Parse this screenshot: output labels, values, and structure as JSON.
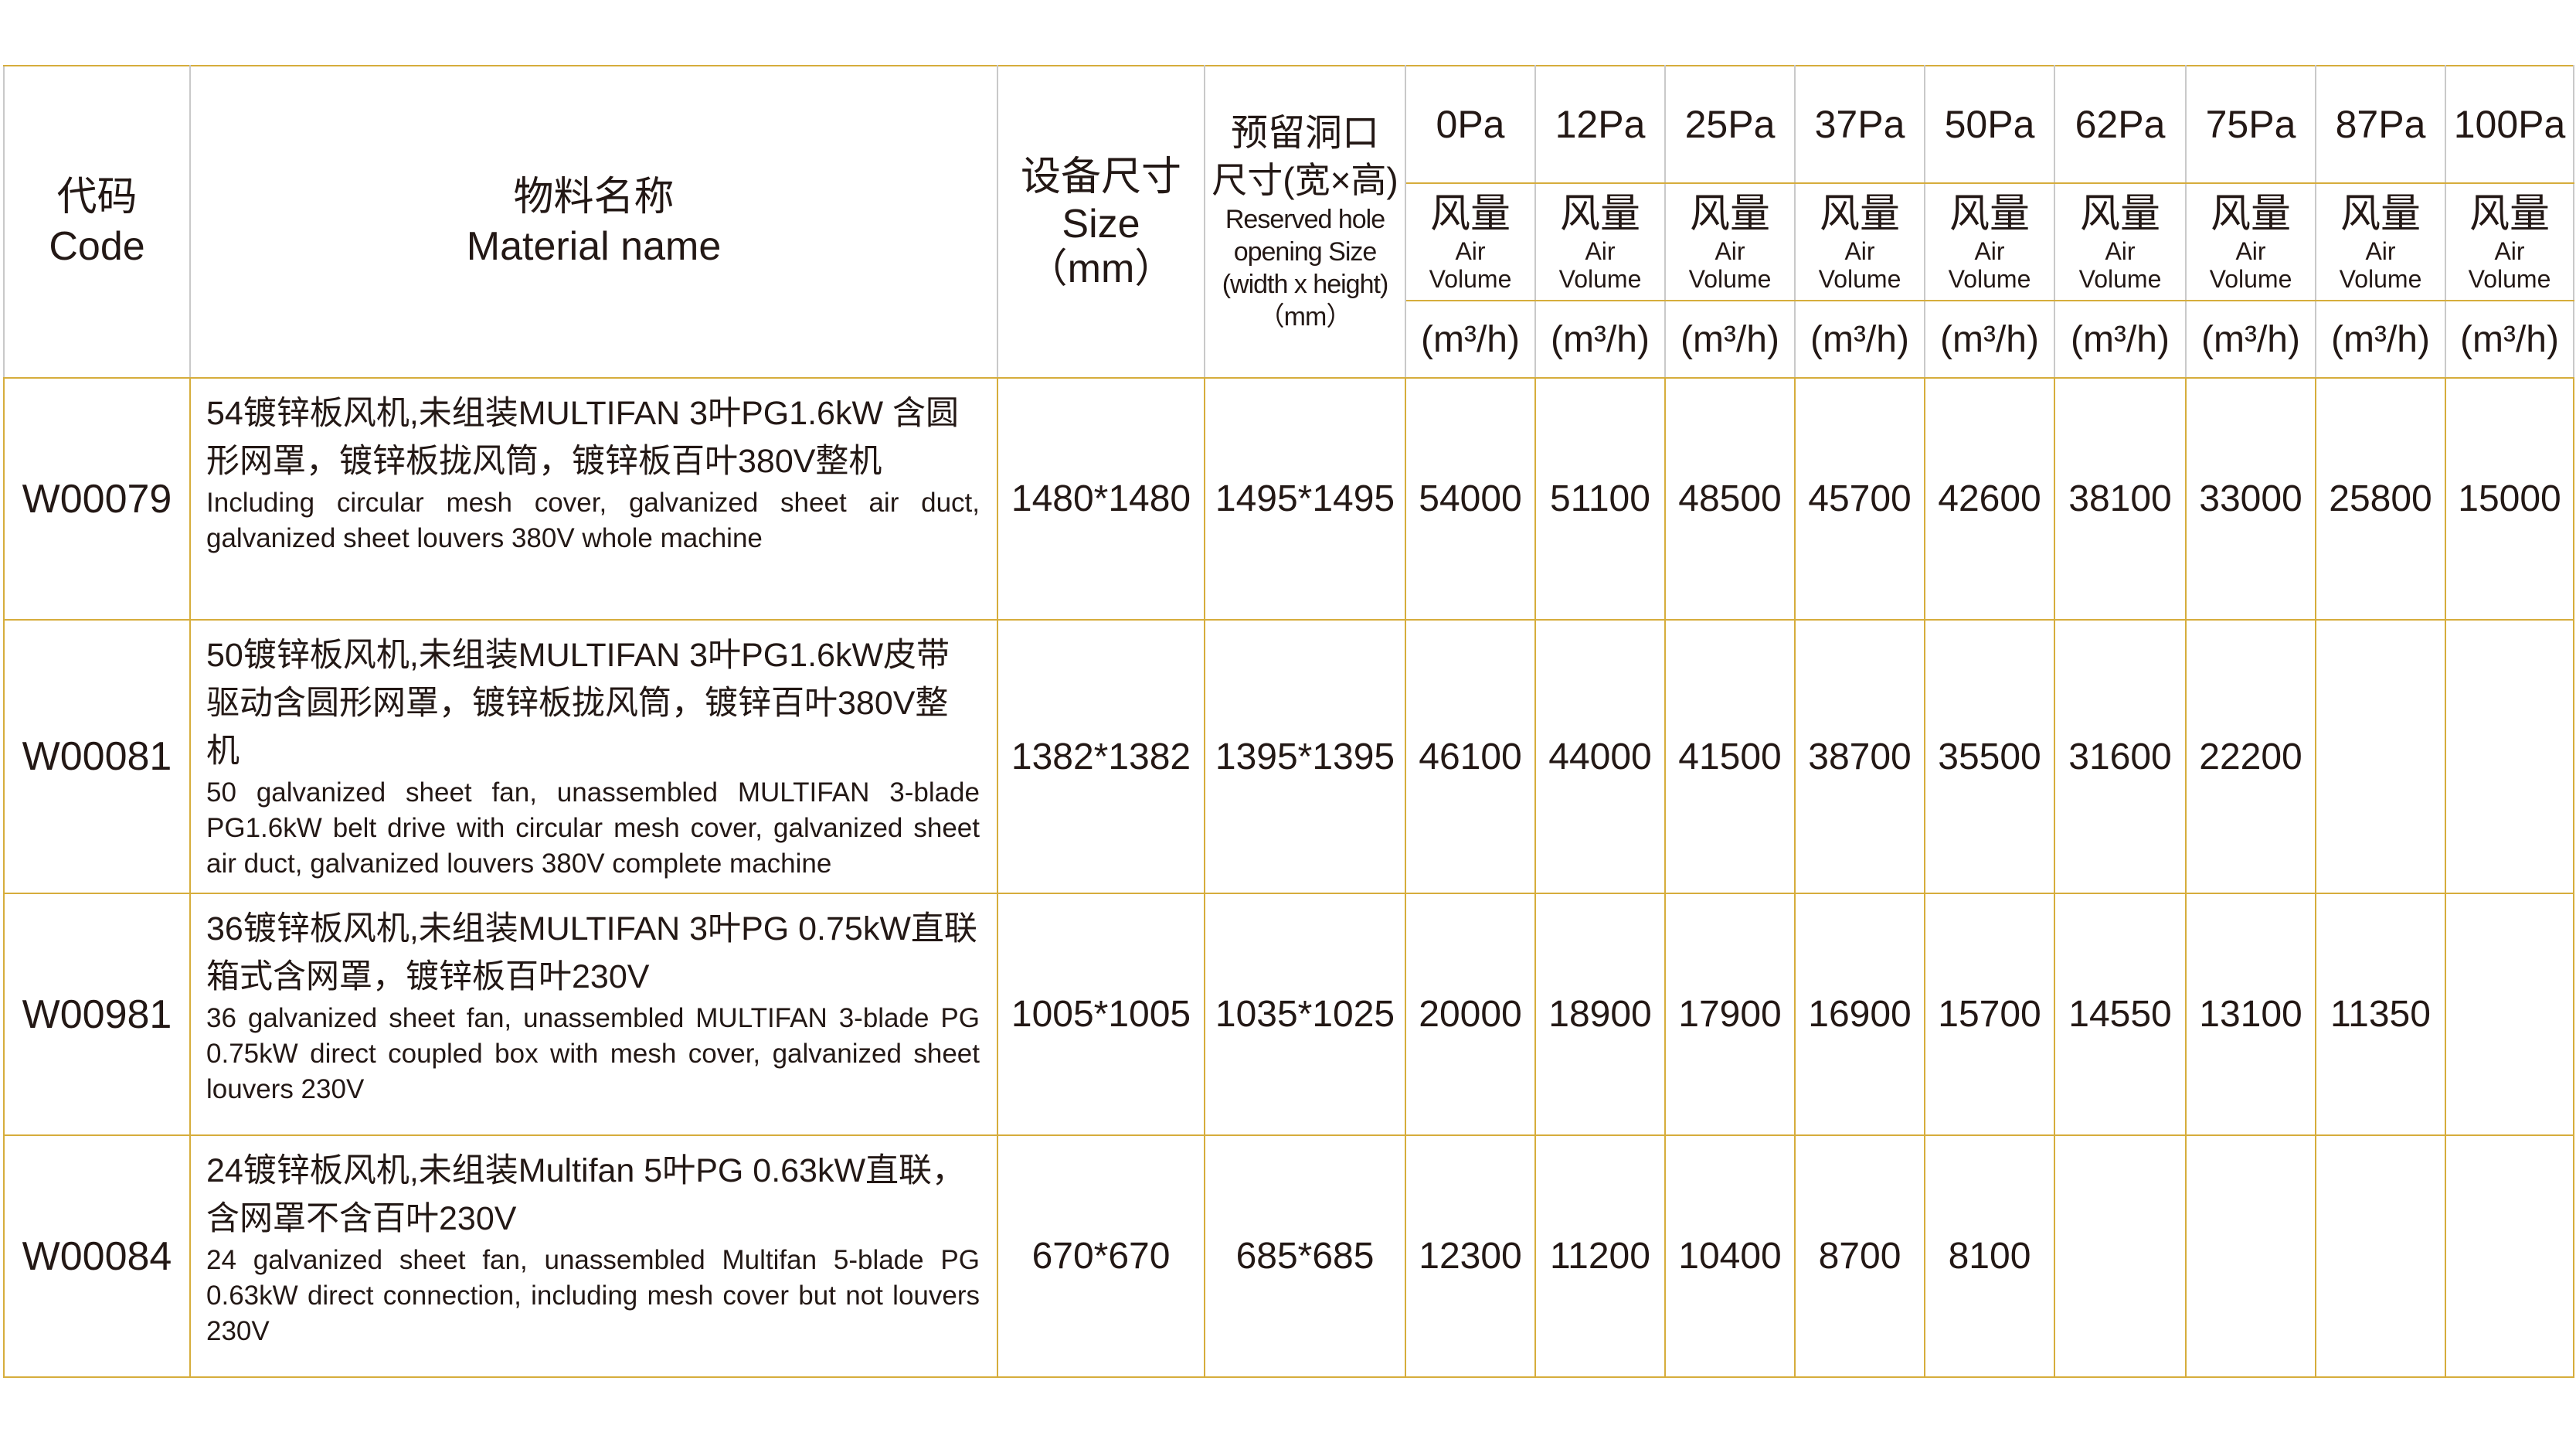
{
  "header": {
    "code_zh": "代码",
    "code_en": "Code",
    "name_zh": "物料名称",
    "name_en": "Material name",
    "size_zh": "设备尺寸",
    "size_en": "Size",
    "size_unit": "（mm）",
    "hole_zh1": "预留洞口",
    "hole_zh2": "尺寸(宽×高)",
    "hole_en1": "Reserved hole",
    "hole_en2": "opening Size",
    "hole_en3": "(width x height)",
    "hole_unit": "（mm）",
    "pressures": [
      "0Pa",
      "12Pa",
      "25Pa",
      "37Pa",
      "50Pa",
      "62Pa",
      "75Pa",
      "87Pa",
      "100Pa"
    ],
    "airvol_zh": "风量",
    "airvol_en1": "Air",
    "airvol_en2": "Volume",
    "airvol_unit": "(m³/h)"
  },
  "rows": [
    {
      "code": "W00079",
      "name_zh": "54镀锌板风机,未组装MULTIFAN 3叶PG1.6kW 含圆形网罩，镀锌板拢风筒，镀锌板百叶380V整机",
      "name_en": "Including circular mesh cover, galvanized sheet air duct, galvanized sheet louvers 380V whole machine",
      "size": "1480*1480",
      "hole": "1495*1495",
      "values": [
        "54000",
        "51100",
        "48500",
        "45700",
        "42600",
        "38100",
        "33000",
        "25800",
        "15000"
      ]
    },
    {
      "code": "W00081",
      "name_zh": "50镀锌板风机,未组装MULTIFAN 3叶PG1.6kW皮带驱动含圆形网罩，镀锌板拢风筒，镀锌百叶380V整机",
      "name_en": "50 galvanized sheet fan, unassembled MULTIFAN 3-blade PG1.6kW belt drive with circular mesh cover, galvanized sheet air duct, galvanized louvers 380V complete machine",
      "size": "1382*1382",
      "hole": "1395*1395",
      "values": [
        "46100",
        "44000",
        "41500",
        "38700",
        "35500",
        "31600",
        "22200",
        "",
        ""
      ]
    },
    {
      "code": "W00981",
      "name_zh": "36镀锌板风机,未组装MULTIFAN 3叶PG 0.75kW直联箱式含网罩，镀锌板百叶230V",
      "name_en": "36 galvanized sheet fan, unassembled MULTIFAN 3-blade PG 0.75kW direct coupled box with mesh cover, galvanized sheet louvers 230V",
      "size": "1005*1005",
      "hole": "1035*1025",
      "values": [
        "20000",
        "18900",
        "17900",
        "16900",
        "15700",
        "14550",
        "13100",
        "11350",
        ""
      ]
    },
    {
      "code": "W00084",
      "name_zh": "24镀锌板风机,未组装Multifan 5叶PG 0.63kW直联，含网罩不含百叶230V",
      "name_en": "24 galvanized sheet fan, unassembled Multifan 5-blade PG 0.63kW direct connection, including mesh cover but not louvers 230V",
      "size": "670*670",
      "hole": "685*685",
      "values": [
        "12300",
        "11200",
        "10400",
        "8700",
        "8100",
        "",
        "",
        "",
        ""
      ]
    }
  ]
}
